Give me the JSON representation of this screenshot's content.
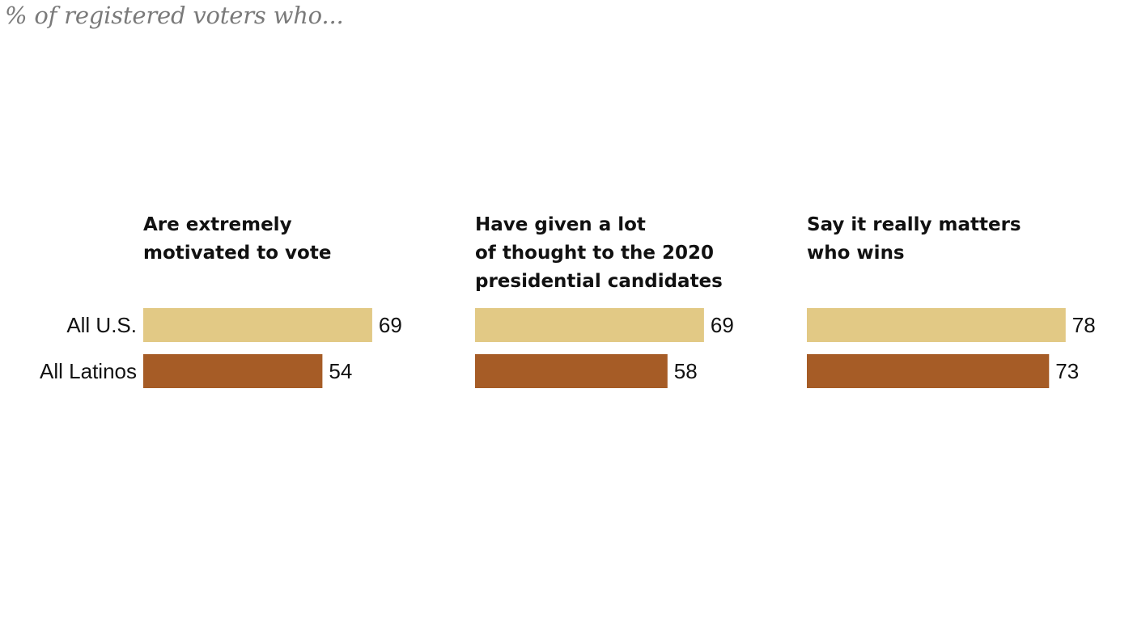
{
  "chart_data": {
    "type": "bar",
    "subtitle": "% of registered voters who...",
    "categories": [
      "All U.S.",
      "All Latinos"
    ],
    "colors": {
      "All U.S.": "#e2c985",
      "All Latinos": "#a65c26"
    },
    "xlim": [
      0,
      100
    ],
    "panels": [
      {
        "title_lines": [
          "Are extremely",
          "motivated to vote"
        ],
        "values": [
          69,
          54
        ]
      },
      {
        "title_lines": [
          "Have given a lot",
          "of thought to the 2020",
          "presidential candidates"
        ],
        "values": [
          69,
          58
        ]
      },
      {
        "title_lines": [
          "Say it really matters",
          "who wins"
        ],
        "values": [
          78,
          73
        ]
      }
    ]
  }
}
